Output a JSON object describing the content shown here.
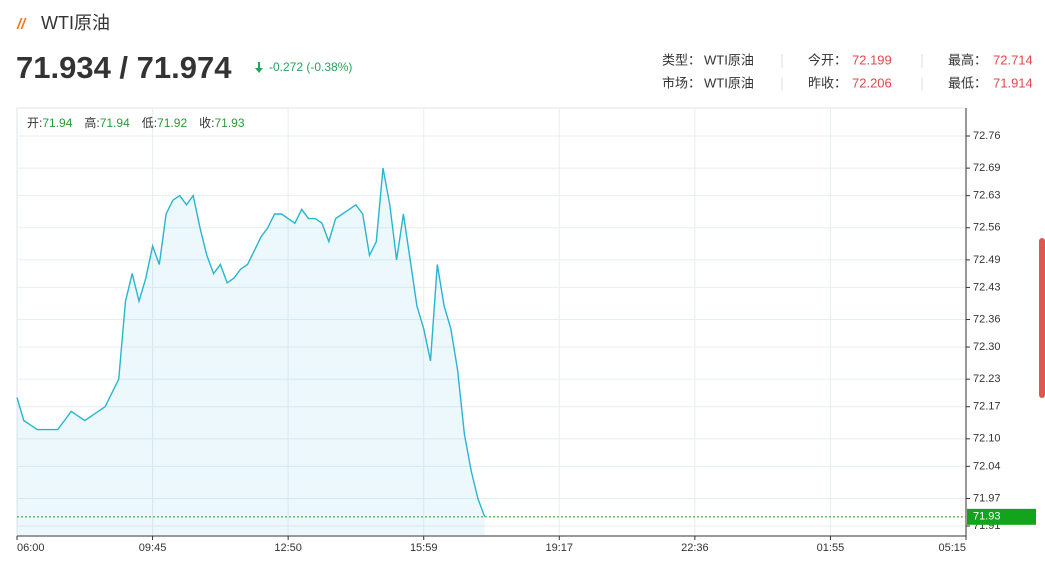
{
  "header": {
    "title": "WTI原油",
    "price": "71.934 / 71.974",
    "change": "-0.272 (-0.38%)",
    "info": [
      [
        {
          "label": "类型：",
          "value": "WTI原油"
        },
        {
          "label": "今开：",
          "value": 72.199
        },
        {
          "label": "最高：",
          "value": 72.714
        }
      ],
      [
        {
          "label": "市场：",
          "value": "WTI原油"
        },
        {
          "label": "昨收：",
          "value": 72.206
        },
        {
          "label": "最低：",
          "value": 71.914
        }
      ]
    ]
  },
  "chart_data": {
    "type": "area",
    "ohlc": [
      {
        "label": "开:",
        "value": 71.94
      },
      {
        "label": "高:",
        "value": 71.94
      },
      {
        "label": "低:",
        "value": 71.92
      },
      {
        "label": "收:",
        "value": 71.93
      }
    ],
    "x": [
      0,
      10,
      20,
      30,
      40,
      50,
      60,
      70,
      80,
      90,
      100,
      110,
      120,
      130,
      140,
      150,
      160,
      170,
      180,
      190,
      200,
      210,
      220,
      230,
      240,
      250,
      260,
      270,
      280,
      290,
      300,
      310,
      320,
      330,
      340,
      350,
      360,
      370,
      380,
      390,
      400,
      410,
      420,
      430,
      440,
      450,
      460,
      470,
      480,
      490,
      500,
      510,
      520,
      530,
      540,
      550,
      560,
      570,
      580,
      590,
      600,
      610,
      620,
      630,
      640,
      650,
      660,
      670,
      680,
      690
    ],
    "series": [
      {
        "color": "#27b6cf",
        "values": [
          72.19,
          72.14,
          72.13,
          72.12,
          72.12,
          72.12,
          72.12,
          72.14,
          72.16,
          72.15,
          72.14,
          72.15,
          72.16,
          72.17,
          72.2,
          72.23,
          72.4,
          72.46,
          72.4,
          72.45,
          72.52,
          72.48,
          72.59,
          72.62,
          72.63,
          72.61,
          72.63,
          72.56,
          72.5,
          72.46,
          72.48,
          72.44,
          72.45,
          72.47,
          72.48,
          72.51,
          72.54,
          72.56,
          72.59,
          72.59,
          72.58,
          72.57,
          72.6,
          72.58,
          72.58,
          72.57,
          72.53,
          72.58,
          72.59,
          72.6,
          72.61,
          72.59,
          72.5,
          72.53,
          72.69,
          72.61,
          72.49,
          72.59,
          72.49,
          72.39,
          72.34,
          72.27,
          72.48,
          72.39,
          72.34,
          72.25,
          72.11,
          72.03,
          71.97,
          71.93
        ]
      }
    ],
    "last_value": 71.93,
    "xlim": [
      0,
      1400
    ],
    "xticks": [
      {
        "value": 0,
        "label": "06:00"
      },
      {
        "value": 200,
        "label": "09:45"
      },
      {
        "value": 400,
        "label": "12:50"
      },
      {
        "value": 600,
        "label": "15:59"
      },
      {
        "value": 800,
        "label": "19:17"
      },
      {
        "value": 1000,
        "label": "22:36"
      },
      {
        "value": 1200,
        "label": "01:55"
      },
      {
        "value": 1400,
        "label": "05:15"
      }
    ],
    "ylim": [
      71.91,
      72.76
    ],
    "yticks": [
      72.76,
      72.69,
      72.63,
      72.56,
      72.49,
      72.43,
      72.36,
      {
        "value": 72.3,
        "label": "72.30"
      },
      72.23,
      72.17,
      {
        "value": 72.1,
        "label": "72.10"
      },
      72.04,
      71.97,
      71.91
    ],
    "grid": true
  }
}
